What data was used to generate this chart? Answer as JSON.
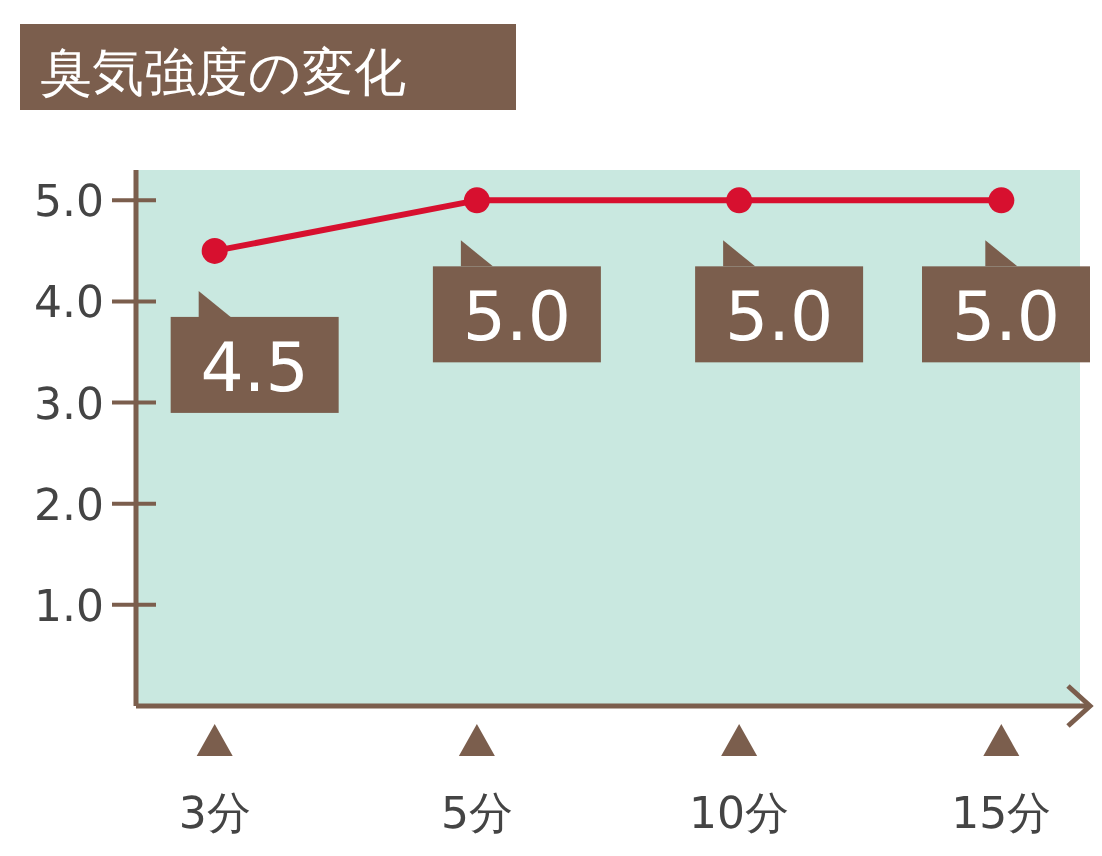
{
  "chart_data": {
    "type": "line",
    "title": "臭気強度の変化",
    "categories": [
      "3分",
      "5分",
      "10分",
      "15分"
    ],
    "values": [
      4.5,
      5.0,
      5.0,
      5.0
    ],
    "value_labels": [
      "4.5",
      "5.0",
      "5.0",
      "5.0"
    ],
    "color": "#d7102f",
    "marker": "circle",
    "ylim": [
      0,
      5.3
    ],
    "yticks": [
      {
        "value": 1,
        "label": "1.0"
      },
      {
        "value": 2,
        "label": "2.0"
      },
      {
        "value": 3,
        "label": "3.0"
      },
      {
        "value": 4,
        "label": "4.0"
      },
      {
        "value": 5,
        "label": "5.0"
      }
    ]
  }
}
